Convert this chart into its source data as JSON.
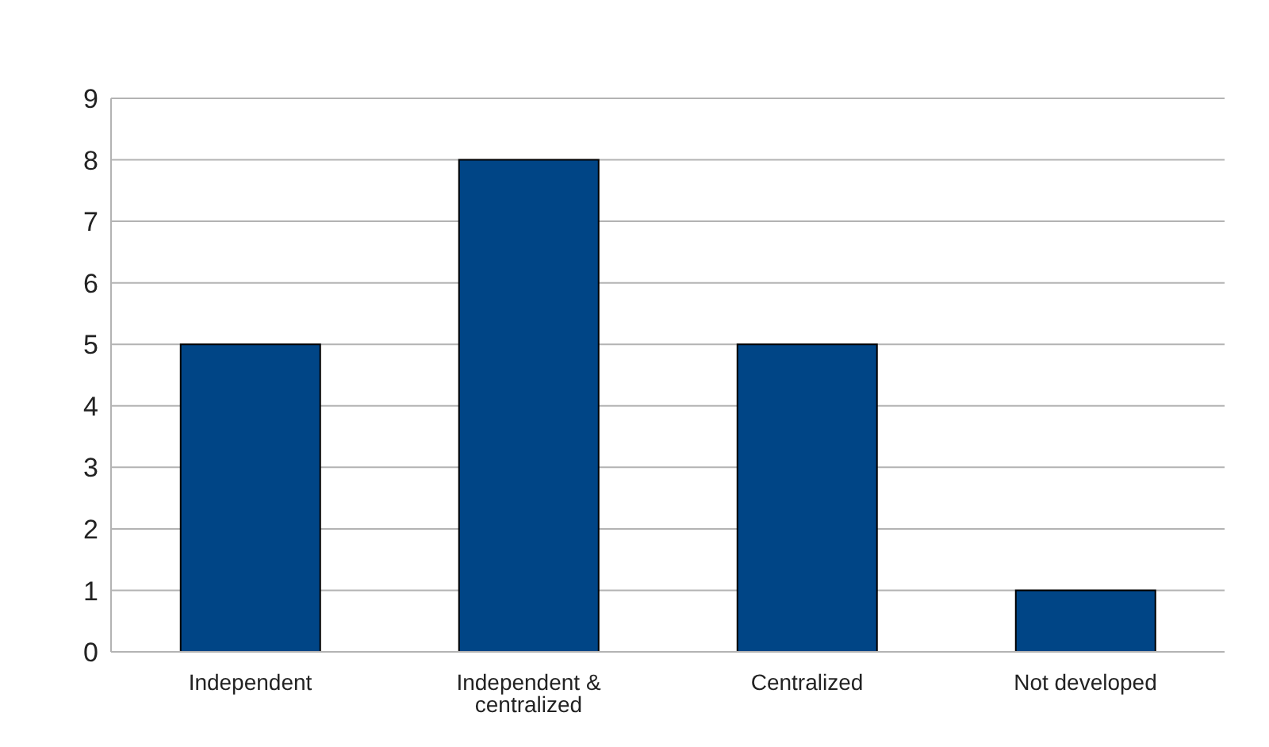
{
  "chart_data": {
    "type": "bar",
    "categories": [
      "Independent",
      "Independent & centralized",
      "Centralized",
      "Not developed"
    ],
    "values": [
      5,
      8,
      5,
      1
    ],
    "color": "#004586",
    "ylim": [
      0,
      9
    ],
    "yticks": [
      0,
      1,
      2,
      3,
      4,
      5,
      6,
      7,
      8,
      9
    ],
    "grid": "y"
  }
}
